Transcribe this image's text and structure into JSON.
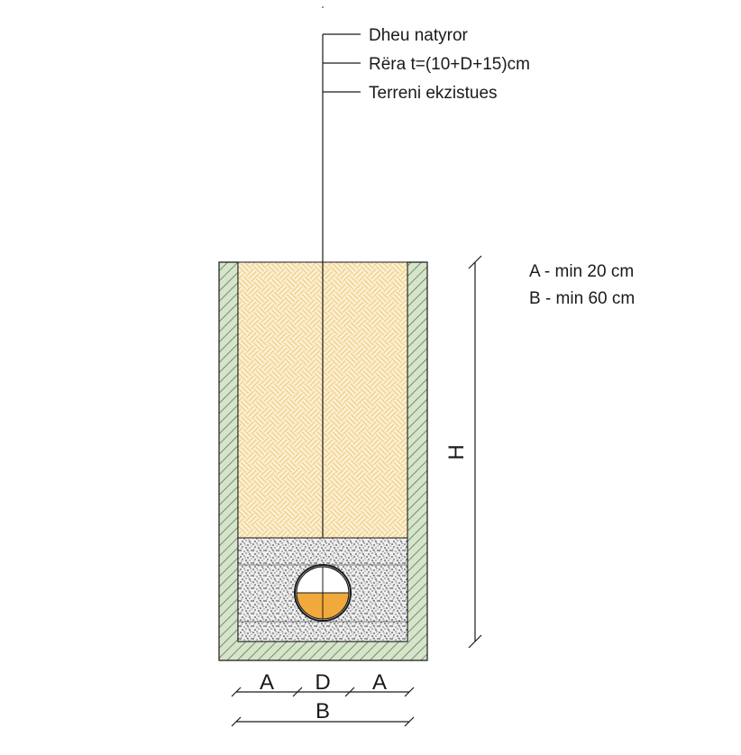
{
  "leader_labels": [
    "Dheu natyror",
    "Rëra t=(10+D+15)cm",
    "Terreni ekzistues"
  ],
  "notes": [
    "A - min 20 cm",
    "B - min 60 cm"
  ],
  "dimensions": {
    "height": "H",
    "side_left": "A",
    "pipe": "D",
    "side_right": "A",
    "total_width": "B"
  },
  "colors": {
    "trench_wall_fill": "#d6e4cb",
    "wall_hatch": "#5f7a4a",
    "backfill_fill": "#fbf0d5",
    "backfill_pattern": "#f0c877",
    "sand_bedding_fill": "#eeeeee",
    "pipe_flow_fill": "#f2a93b",
    "line": "#1a1a1a"
  },
  "icons": {
    "pipe": "pipe-cross-section-icon",
    "wall": "hatched-trench-wall",
    "backfill": "basketweave-soil-pattern",
    "sand": "stippled-sand-pattern"
  }
}
